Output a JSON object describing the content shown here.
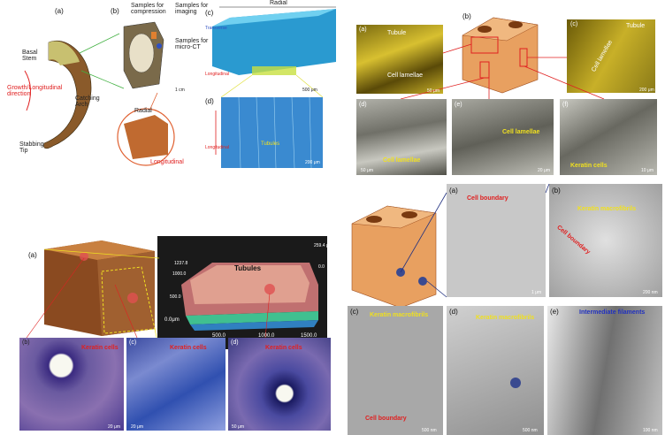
{
  "top_left": {
    "panel_a": "(a)",
    "panel_b": "(b)",
    "panel_c": "(c)",
    "panel_d": "(d)",
    "basal_stem": "Basal Stem",
    "growth_dir": "Growth/Longitudinal direction",
    "catching_arch": "Catching Arch",
    "stabbing_tip": "Stabbing Tip",
    "samples_compression": "Samples for compression",
    "samples_imaging": "Samples for imaging",
    "samples_microct": "Samples for micro-CT",
    "scale_1cm": "1 cm",
    "radial": "Radial",
    "transverse": "Transverse",
    "longitudinal": "Longitudinal",
    "radial_c": "Radial",
    "transverse_c": "Transverse",
    "longitudinal_c": "Longitudinal",
    "scale_500": "500 μm",
    "longitudinal_d": "Longitudinal",
    "tubules_d": "Tubules",
    "scale_200": "200 μm"
  },
  "top_right": {
    "panel_a": "(a)",
    "panel_b": "(b)",
    "panel_c": "(c)",
    "panel_d": "(d)",
    "panel_e": "(e)",
    "panel_f": "(f)",
    "tubule_a": "Tubule",
    "cell_lamellae_a": "Cell lamellae",
    "scale_a": "50 μm",
    "tubule_c": "Tubule",
    "cell_lamellae_c": "Cell lamellae",
    "scale_c": "200 μm",
    "cell_lamellae_d": "Cell lamellae",
    "scale_d": "50 μm",
    "cell_lamellae_e": "Cell lamellae",
    "scale_e": "20 μm",
    "keratin_cells_f": "Keratin cells",
    "scale_f": "10 μm"
  },
  "bottom_left": {
    "panel_a": "(a)",
    "panel_b": "(b)",
    "panel_c": "(c)",
    "panel_d": "(d)",
    "z_top": "259.4 μm",
    "z_bottom": "0.0",
    "y_1237": "1237.8",
    "y_1000": "1000.0",
    "y_500": "500.0",
    "y_0": "0.0μm",
    "x_500": "500.0",
    "x_1000": "1000.0",
    "x_1500": "1500.0",
    "tubules": "Tubules",
    "keratin_b": "Keratin cells",
    "keratin_c": "Keratin cells",
    "keratin_d": "Keratin cells",
    "scale_b": "20 μm",
    "scale_c": "20 μm",
    "scale_d": "50 μm"
  },
  "bottom_right": {
    "panel_a": "(a)",
    "panel_b": "(b)",
    "panel_c": "(c)",
    "panel_d": "(d)",
    "panel_e": "(e)",
    "cell_boundary_a": "Cell boundary",
    "keratin_macrofibrils_b": "Keratin macrofibrils",
    "cell_boundary_b": "Cell boundary",
    "keratin_macrofibrils_c": "Keratin macrofibrils",
    "cell_boundary_c": "Cell boundary",
    "keratin_macrofibrils_d": "Keratin macrofibrils",
    "intermediate_filaments": "Intermediate filaments",
    "scale_a": "1 μm",
    "scale_b": "200 nm",
    "scale_c": "500 nm",
    "scale_d": "500 nm",
    "scale_e": "100 nm"
  }
}
